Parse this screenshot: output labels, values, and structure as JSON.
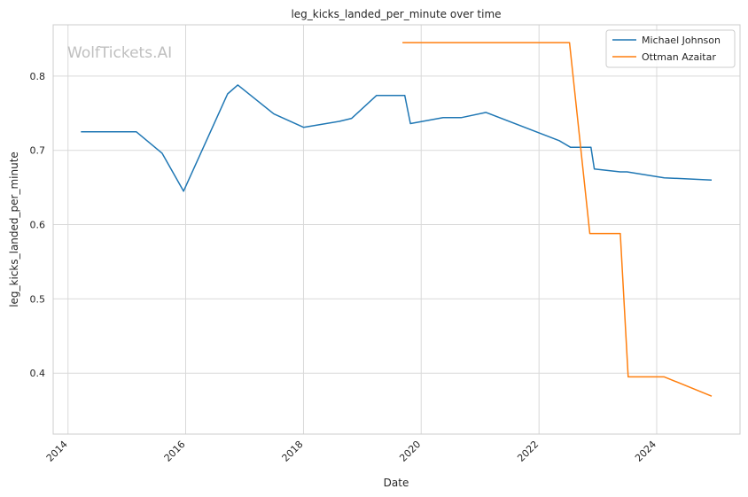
{
  "watermark": "WolfTickets.AI",
  "chart_data": {
    "type": "line",
    "title": "leg_kicks_landed_per_minute over time",
    "xlabel": "Date",
    "ylabel": "leg_kicks_landed_per_minute",
    "x_ticks": [
      "2014",
      "2016",
      "2018",
      "2020",
      "2022",
      "2024"
    ],
    "y_ticks": [
      "0.4",
      "0.5",
      "0.6",
      "0.7",
      "0.8"
    ],
    "xlim": [
      "2013-10-01",
      "2025-06-01"
    ],
    "ylim": [
      0.318,
      0.869
    ],
    "grid": true,
    "legend_position": "top-right",
    "series": [
      {
        "name": "Michael Johnson",
        "color": "#1f77b4",
        "points": [
          [
            "2014-03-22",
            0.725
          ],
          [
            "2015-02-28",
            0.725
          ],
          [
            "2015-08-08",
            0.696
          ],
          [
            "2015-12-19",
            0.645
          ],
          [
            "2016-09-17",
            0.776
          ],
          [
            "2016-11-19",
            0.788
          ],
          [
            "2017-07-01",
            0.749
          ],
          [
            "2018-01-01",
            0.731
          ],
          [
            "2018-08-11",
            0.739
          ],
          [
            "2018-10-27",
            0.743
          ],
          [
            "2019-03-30",
            0.774
          ],
          [
            "2019-09-21",
            0.774
          ],
          [
            "2019-10-26",
            0.736
          ],
          [
            "2020-05-16",
            0.744
          ],
          [
            "2020-09-05",
            0.744
          ],
          [
            "2021-02-06",
            0.751
          ],
          [
            "2022-05-07",
            0.713
          ],
          [
            "2022-07-16",
            0.704
          ],
          [
            "2022-11-19",
            0.704
          ],
          [
            "2022-12-10",
            0.675
          ],
          [
            "2023-05-20",
            0.671
          ],
          [
            "2023-07-01",
            0.671
          ],
          [
            "2024-02-17",
            0.663
          ],
          [
            "2024-12-07",
            0.66
          ]
        ]
      },
      {
        "name": "Ottman Azaitar",
        "color": "#ff7f0e",
        "points": [
          [
            "2019-09-07",
            0.845
          ],
          [
            "2022-07-09",
            0.845
          ],
          [
            "2022-11-12",
            0.588
          ],
          [
            "2023-05-20",
            0.588
          ],
          [
            "2023-07-08",
            0.395
          ],
          [
            "2024-02-17",
            0.395
          ],
          [
            "2024-12-07",
            0.369
          ]
        ]
      }
    ]
  }
}
